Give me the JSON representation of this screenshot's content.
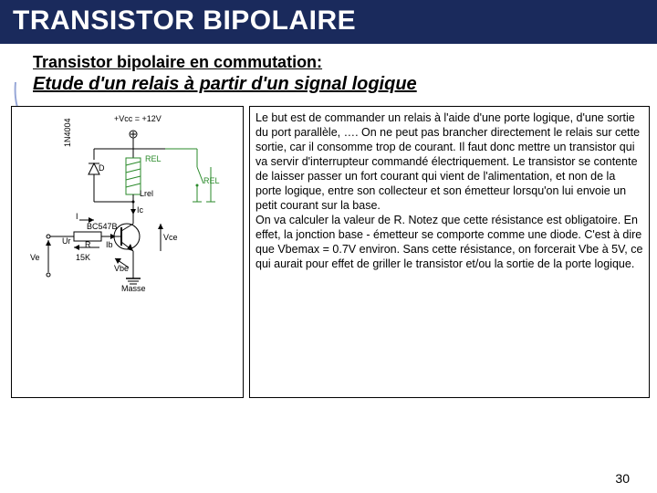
{
  "title": "TRANSISTOR BIPOLAIRE",
  "subtitle": "Transistor bipolaire en commutation:",
  "subtitle2": "Etude d'un relais à partir d'un signal logique",
  "body_text": "Le but est de commander un relais à l'aide d'une porte logique, d'une sortie du port parallèle, …. On ne peut pas brancher directement le relais sur cette sortie, car il consomme trop de courant. Il faut donc mettre un transistor qui va servir d'interrupteur commandé électriquement. Le transistor se contente de laisser passer un fort courant qui vient de l'alimentation, et non de la porte logique, entre son collecteur et son émetteur lorsqu'on lui envoie un petit courant sur la base.\nOn va calculer la valeur de R. Notez que cette résistance est obligatoire. En effet, la jonction base - émetteur se comporte comme une diode. C'est à dire que Vbemax = 0.7V environ. Sans cette résistance, on forcerait Vbe à 5V, ce qui aurait pour effet de griller le transistor et/ou la sortie de la porte logique.",
  "page_number": "30",
  "schematic": {
    "vcc_label": "+Vcc = +12V",
    "diode_label": "1N4004",
    "diode_ref": "D",
    "relay_label": "REL",
    "relay2_label": "REL",
    "lrel_label": "Lrel",
    "transistor_label": "BC547B",
    "r_label": "R",
    "r_value": "15K",
    "ib_label": "Ib",
    "ic_label": "Ic",
    "ur_label": "Ur",
    "ve_label": "Ve",
    "vce_label": "Vce",
    "vbe_label": "Vbe",
    "masse_label": "Masse",
    "i_label": "I",
    "colors": {
      "wire": "#000000",
      "rel_box": "#2a8a2a",
      "diode": "#000000",
      "resistor": "#000000"
    }
  }
}
